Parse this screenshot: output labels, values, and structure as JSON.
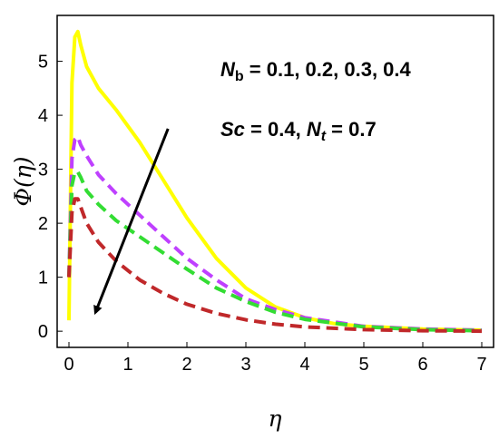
{
  "chart_data": {
    "type": "line",
    "xlabel": "η",
    "ylabel": "Φ(η)",
    "xlim": [
      -0.2,
      7.2
    ],
    "ylim": [
      -0.3,
      5.85
    ],
    "x_ticks": [
      0,
      1,
      2,
      3,
      4,
      5,
      6,
      7
    ],
    "y_ticks": [
      0,
      1,
      2,
      3,
      4,
      5
    ],
    "grid": false,
    "legend": "none",
    "annotation": {
      "line1": {
        "symbol": "N",
        "subscript": "b",
        "values": " = 0.1,  0.2,  0.3,  0.4"
      },
      "line2": {
        "sc_symbol": "Sc",
        "sc_value": " = 0.4, ",
        "nt_symbol": "N",
        "nt_subscript": "t",
        "nt_value": " = 0.7"
      }
    },
    "arrow": {
      "from": [
        1.68,
        3.75
      ],
      "to": [
        0.45,
        0.35
      ],
      "color": "#000000"
    },
    "series": [
      {
        "color": "#ffff00",
        "dash": "solid",
        "x": [
          0.0,
          0.05,
          0.1,
          0.15,
          0.2,
          0.3,
          0.5,
          0.8,
          1.2,
          1.6,
          2.0,
          2.5,
          3.0,
          3.5,
          4.0,
          4.5,
          5.0,
          6.0,
          7.0
        ],
        "y": [
          0.2,
          4.6,
          5.45,
          5.55,
          5.3,
          4.9,
          4.5,
          4.1,
          3.5,
          2.8,
          2.1,
          1.35,
          0.8,
          0.45,
          0.25,
          0.14,
          0.09,
          0.04,
          0.02
        ]
      },
      {
        "color": "#bf40ff",
        "dash": "dashed",
        "x": [
          0.0,
          0.05,
          0.1,
          0.15,
          0.2,
          0.3,
          0.5,
          0.8,
          1.2,
          1.6,
          2.0,
          2.5,
          3.0,
          3.5,
          4.0,
          5.0,
          6.0,
          7.0
        ],
        "y": [
          1.0,
          3.2,
          3.55,
          3.6,
          3.45,
          3.25,
          2.9,
          2.55,
          2.15,
          1.75,
          1.35,
          0.95,
          0.6,
          0.4,
          0.25,
          0.09,
          0.04,
          0.02
        ]
      },
      {
        "color": "#33dd33",
        "dash": "dashed",
        "x": [
          0.0,
          0.05,
          0.1,
          0.15,
          0.2,
          0.3,
          0.5,
          0.8,
          1.2,
          1.6,
          2.0,
          2.5,
          3.0,
          3.5,
          4.0,
          5.0,
          6.0,
          7.0
        ],
        "y": [
          1.0,
          2.7,
          2.95,
          2.95,
          2.85,
          2.6,
          2.35,
          2.05,
          1.75,
          1.45,
          1.15,
          0.8,
          0.55,
          0.35,
          0.22,
          0.08,
          0.03,
          0.01
        ]
      },
      {
        "color": "#c0282a",
        "dash": "dashed",
        "x": [
          0.0,
          0.05,
          0.1,
          0.15,
          0.2,
          0.3,
          0.5,
          0.8,
          1.2,
          1.6,
          2.0,
          2.5,
          3.0,
          3.5,
          4.0,
          5.0,
          6.0,
          7.0
        ],
        "y": [
          1.0,
          2.2,
          2.45,
          2.45,
          2.3,
          2.0,
          1.65,
          1.3,
          0.95,
          0.7,
          0.5,
          0.33,
          0.21,
          0.13,
          0.08,
          0.03,
          0.01,
          0.0
        ]
      }
    ]
  }
}
